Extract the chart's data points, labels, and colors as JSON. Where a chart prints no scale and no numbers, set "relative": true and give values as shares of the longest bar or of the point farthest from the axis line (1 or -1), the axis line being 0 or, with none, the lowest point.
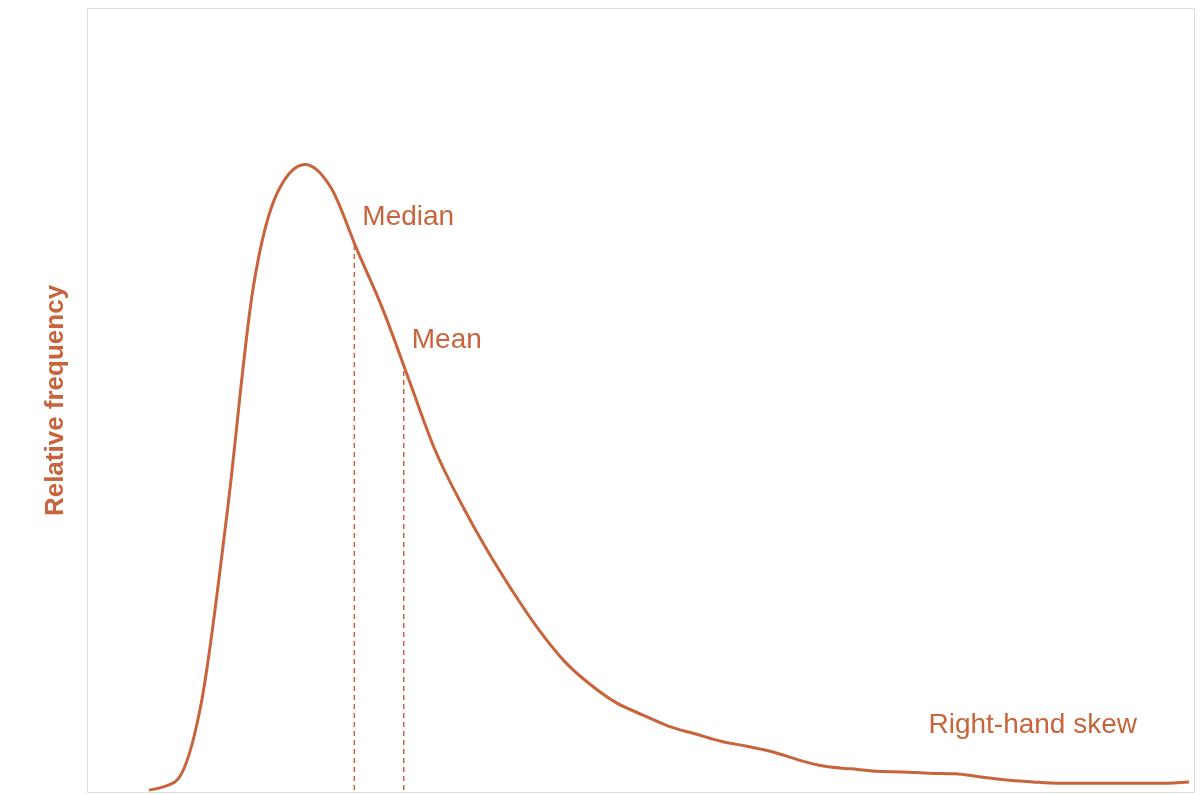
{
  "chart_data": {
    "type": "line",
    "relative": true,
    "ylabel": "Relative frequency",
    "tick_labels": false,
    "grid": false,
    "marker": "none",
    "line_style": "solid",
    "categories": [
      null,
      null,
      null,
      null,
      null,
      null,
      null,
      null,
      null,
      null,
      null,
      null,
      null,
      null,
      null,
      null,
      null,
      null,
      null,
      null,
      null,
      null,
      null,
      null,
      null,
      null,
      null,
      null,
      null,
      null,
      null,
      null,
      null,
      null,
      null,
      null,
      null,
      null,
      null,
      null,
      null
    ],
    "series": [
      {
        "color": "#c8643b",
        "values": [
          0,
          0.013,
          0.136,
          0.44,
          0.8,
          0.96,
          1.0,
          0.963,
          0.864,
          0.768,
          0.656,
          0.544,
          0.459,
          0.384,
          0.317,
          0.256,
          0.205,
          0.168,
          0.139,
          0.12,
          0.102,
          0.09,
          0.078,
          0.07,
          0.061,
          0.048,
          0.038,
          0.034,
          0.03,
          0.029,
          0.027,
          0.026,
          0.021,
          0.016,
          0.013,
          0.011,
          0.011,
          0.011,
          0.011,
          0.011,
          0.013
        ]
      }
    ],
    "annotations": [
      "Median",
      "Mean",
      "Right-hand skew"
    ]
  }
}
